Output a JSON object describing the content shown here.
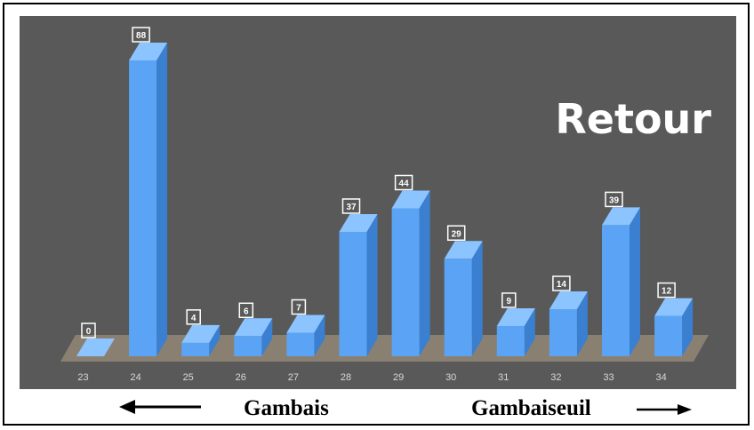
{
  "chart_data": {
    "type": "bar",
    "title": "Retour",
    "categories": [
      "23",
      "24",
      "25",
      "26",
      "27",
      "28",
      "29",
      "30",
      "31",
      "32",
      "33",
      "34"
    ],
    "values": [
      0,
      88,
      4,
      6,
      7,
      37,
      44,
      29,
      9,
      14,
      39,
      12
    ],
    "ylim": [
      0,
      88
    ],
    "bar_color": "#5ba4f5",
    "plot_background": "#595959",
    "floor_color": "#8a8072",
    "grid": false,
    "legend": "none"
  },
  "footer": {
    "left_label": "Gambais",
    "right_label": "Gambaiseuil"
  }
}
